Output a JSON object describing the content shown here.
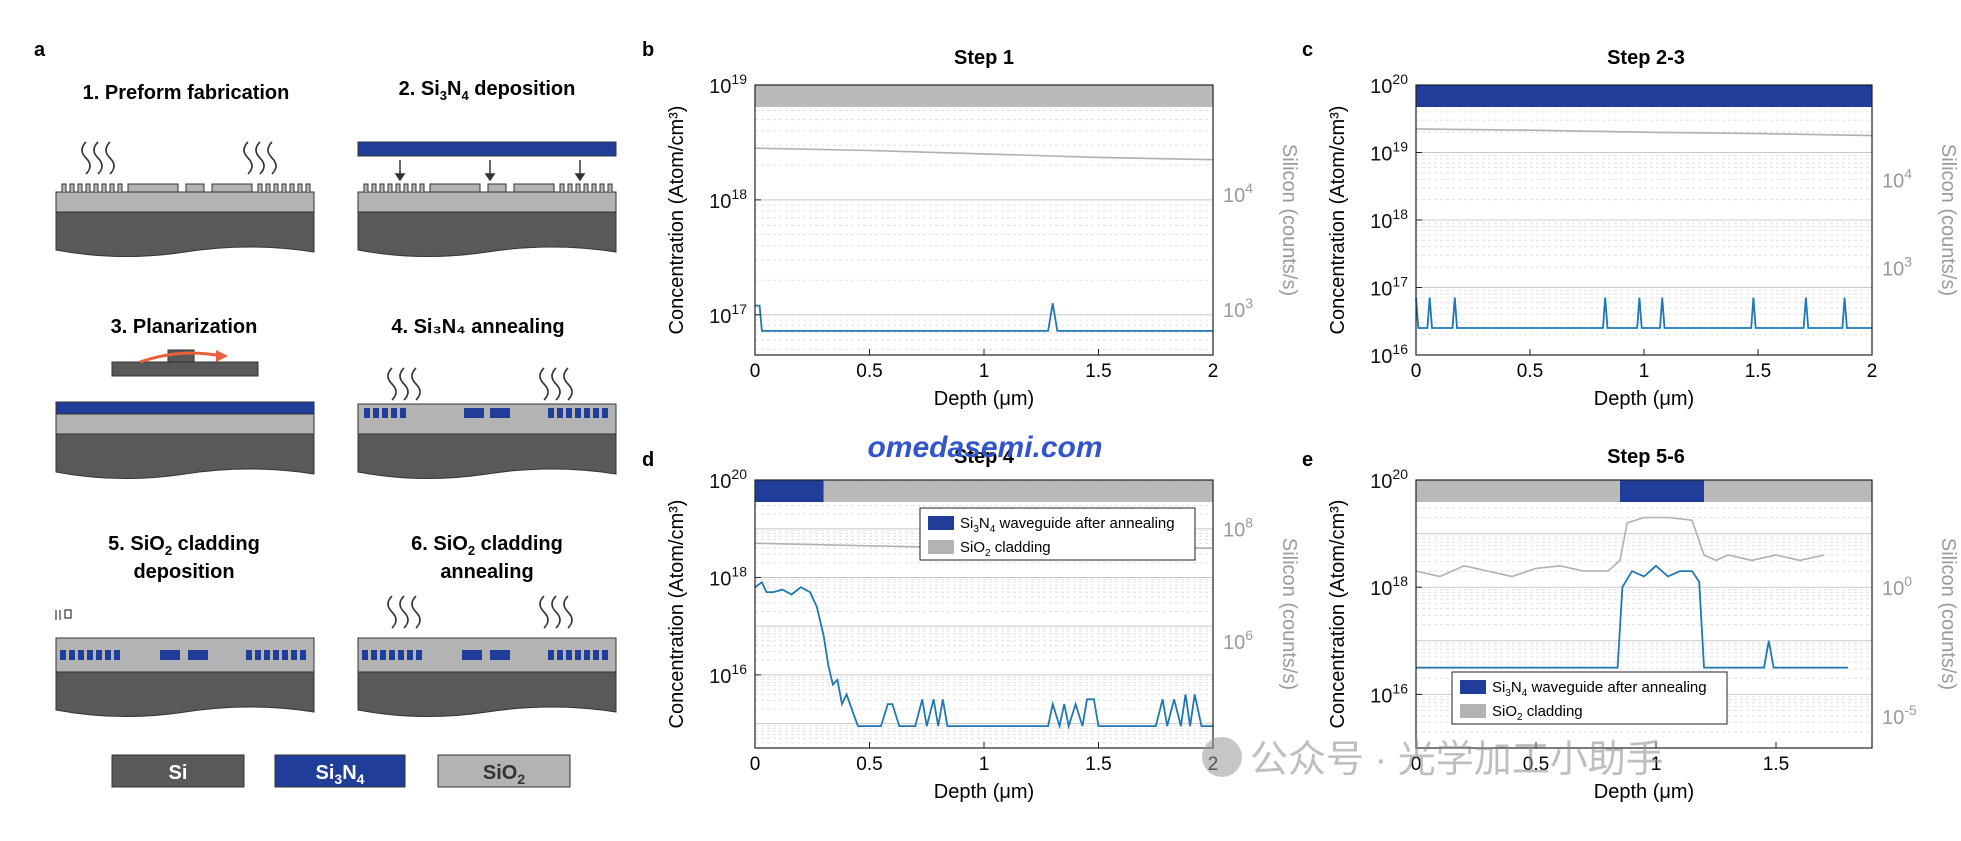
{
  "panel_letters": [
    "a",
    "b",
    "c",
    "d",
    "e"
  ],
  "process_steps": [
    {
      "label": "1. Preform fabrication"
    },
    {
      "label_pre": "2. Si",
      "label_sub": "3",
      "label_mid": "N",
      "label_sub2": "4",
      "label_post": " deposition"
    },
    {
      "label": "3. Planarization"
    },
    {
      "label": "4. Si₃N₄ annealing"
    },
    {
      "line1_pre": "5. SiO",
      "line1_sub": "2",
      "line1_post": " cladding",
      "line2": "deposition"
    },
    {
      "line1_pre": "6. SiO",
      "line1_sub": "2",
      "line1_post": " cladding",
      "line2": "annealing"
    }
  ],
  "materials_legend": [
    {
      "name": "Si",
      "color": "#595959"
    },
    {
      "name_pre": "Si",
      "sub1": "3",
      "name_mid": "N",
      "sub2": "4",
      "color": "#1f3d99"
    },
    {
      "name_pre": "SiO",
      "sub1": "2",
      "color": "#b3b3b3"
    }
  ],
  "colors": {
    "si": "#595959",
    "sin": "#1f3d99",
    "sio2": "#b3b3b3",
    "trace": "#1f77b4",
    "silicon_trace": "#b0b0b0",
    "arrow": "#e8603c",
    "watermark": "#3355cc"
  },
  "watermark": "omedasemi.com",
  "wechat_watermark": "公众号 · 光学加工小助手",
  "chart_data": [
    {
      "panel": "b",
      "title": "Step 1",
      "type": "line",
      "xlabel": "Depth (μm)",
      "ylabel": "Concentration (Atom/cm³)",
      "y2label": "Silicon (counts/s)",
      "xlim": [
        0,
        2
      ],
      "ylim_log10": [
        16.65,
        19
      ],
      "x_ticks": [
        "0",
        "0.5",
        "1",
        "1.5",
        "2"
      ],
      "y_ticks": [
        {
          "exp": "17",
          "v": 17
        },
        {
          "exp": "18",
          "v": 18
        },
        {
          "exp": "19",
          "v": 19
        }
      ],
      "y2_ticks": [
        {
          "exp": "3",
          "pos": 17.05
        },
        {
          "exp": "4",
          "pos": 18.05
        }
      ],
      "bands": [
        {
          "x0": 0,
          "x1": 2,
          "material": "sio2"
        }
      ],
      "series": [
        {
          "x": [
            0,
            0.02,
            0.03,
            1.28,
            1.3,
            1.32,
            2
          ],
          "y": [
            17.08,
            17.08,
            16.86,
            16.86,
            17.1,
            16.86,
            16.86
          ]
        },
        {
          "axis": "right",
          "x": [
            0,
            0.5,
            1.0,
            1.5,
            2.0
          ],
          "y": [
            18.45,
            18.43,
            18.4,
            18.37,
            18.35
          ]
        }
      ]
    },
    {
      "panel": "c",
      "title": "Step 2-3",
      "type": "line",
      "xlabel": "Depth (μm)",
      "ylabel": "Concentration (Atom/cm³)",
      "y2label": "Silicon (counts/s)",
      "xlim": [
        0,
        2
      ],
      "ylim_log10": [
        16,
        20
      ],
      "x_ticks": [
        "0",
        "0.5",
        "1",
        "1.5",
        "2"
      ],
      "y_ticks": [
        {
          "exp": "16",
          "v": 16
        },
        {
          "exp": "17",
          "v": 17
        },
        {
          "exp": "18",
          "v": 18
        },
        {
          "exp": "19",
          "v": 19
        },
        {
          "exp": "20",
          "v": 20
        }
      ],
      "y2_ticks": [
        {
          "exp": "3",
          "pos": 17.3
        },
        {
          "exp": "4",
          "pos": 18.6
        }
      ],
      "bands": [
        {
          "x0": 0,
          "x1": 2,
          "material": "sin"
        }
      ],
      "series": [
        {
          "x": [
            0,
            0.01,
            0.02,
            0.05,
            0.06,
            0.07,
            0.16,
            0.17,
            0.18,
            0.82,
            0.83,
            0.84,
            0.97,
            0.98,
            0.99,
            1.07,
            1.08,
            1.09,
            1.47,
            1.48,
            1.49,
            1.7,
            1.71,
            1.72,
            1.87,
            1.88,
            1.89,
            2
          ],
          "y": [
            16.85,
            16.4,
            16.4,
            16.4,
            16.85,
            16.4,
            16.4,
            16.85,
            16.4,
            16.4,
            16.85,
            16.4,
            16.4,
            16.85,
            16.4,
            16.4,
            16.85,
            16.4,
            16.4,
            16.85,
            16.4,
            16.4,
            16.85,
            16.4,
            16.4,
            16.85,
            16.4,
            16.4
          ]
        },
        {
          "axis": "right",
          "x": [
            0,
            0.5,
            1.0,
            1.5,
            2.0
          ],
          "y": [
            19.35,
            19.33,
            19.3,
            19.28,
            19.25
          ]
        }
      ]
    },
    {
      "panel": "d",
      "title": "Step 4",
      "type": "line",
      "xlabel": "Depth (μm)",
      "ylabel": "Concentration (Atom/cm³)",
      "y2label": "Silicon (counts/s)",
      "xlim": [
        0,
        2
      ],
      "ylim_log10": [
        14.5,
        20
      ],
      "x_ticks": [
        "0",
        "0.5",
        "1",
        "1.5",
        "2"
      ],
      "y_ticks": [
        {
          "exp": "16",
          "v": 16
        },
        {
          "exp": "18",
          "v": 18
        },
        {
          "exp": "20",
          "v": 20
        }
      ],
      "y2_ticks": [
        {
          "exp": "6",
          "pos": 16.7
        },
        {
          "exp": "8",
          "pos": 19.0
        }
      ],
      "bands": [
        {
          "x0": 0,
          "x1": 0.3,
          "material": "sin"
        },
        {
          "x0": 0.3,
          "x1": 2,
          "material": "sio2"
        }
      ],
      "legend": [
        {
          "pre": "Si",
          "sub1": "3",
          "mid": "N",
          "sub2": "4",
          "post": " waveguide after annealing",
          "material": "sin"
        },
        {
          "pre": "SiO",
          "sub1": "2",
          "mid": "",
          "sub2": "",
          "post": " cladding",
          "material": "sio2"
        }
      ],
      "series": [
        {
          "x": [
            0,
            0.03,
            0.05,
            0.08,
            0.12,
            0.16,
            0.2,
            0.24,
            0.27,
            0.3,
            0.32,
            0.34,
            0.36,
            0.38,
            0.4,
            0.43,
            0.45,
            0.5,
            0.55,
            0.58,
            0.6,
            0.63,
            0.7,
            0.73,
            0.75,
            0.78,
            0.8,
            0.82,
            0.84,
            0.86,
            0.9,
            1.0,
            1.2,
            1.28,
            1.3,
            1.33,
            1.35,
            1.37,
            1.4,
            1.43,
            1.45,
            1.48,
            1.5,
            1.55,
            1.7,
            1.75,
            1.78,
            1.8,
            1.83,
            1.86,
            1.88,
            1.9,
            1.92,
            1.95,
            2
          ],
          "y": [
            17.8,
            17.9,
            17.7,
            17.7,
            17.75,
            17.65,
            17.8,
            17.7,
            17.4,
            16.8,
            16.2,
            15.8,
            15.9,
            15.4,
            15.6,
            15.2,
            14.95,
            14.95,
            14.95,
            15.4,
            15.4,
            14.95,
            14.95,
            15.5,
            14.95,
            15.5,
            14.95,
            15.5,
            14.95,
            14.95,
            14.95,
            14.95,
            14.95,
            14.95,
            15.4,
            14.95,
            15.4,
            14.95,
            15.4,
            14.95,
            15.5,
            15.5,
            14.95,
            14.95,
            14.95,
            14.95,
            15.5,
            14.95,
            15.5,
            14.95,
            15.6,
            14.95,
            15.6,
            14.95,
            14.95
          ]
        },
        {
          "axis": "right",
          "x": [
            0,
            0.5,
            1.0,
            1.5,
            2.0
          ],
          "y": [
            18.7,
            18.65,
            18.6,
            18.62,
            18.6
          ]
        }
      ]
    },
    {
      "panel": "e",
      "title": "Step 5-6",
      "type": "line",
      "xlabel": "Depth (μm)",
      "ylabel": "Concentration (Atom/cm³)",
      "y2label": "Silicon (counts/s)",
      "xlim": [
        0,
        1.9
      ],
      "ylim_log10": [
        15,
        20
      ],
      "x_ticks": [
        "0",
        "0.5",
        "1",
        "1.5"
      ],
      "y_ticks": [
        {
          "exp": "16",
          "v": 16
        },
        {
          "exp": "18",
          "v": 18
        },
        {
          "exp": "20",
          "v": 20
        }
      ],
      "y2_ticks": [
        {
          "exp": "-5",
          "pos": 15.6
        },
        {
          "exp": "0",
          "pos": 18.0
        }
      ],
      "bands": [
        {
          "x0": 0,
          "x1": 0.85,
          "material": "sio2"
        },
        {
          "x0": 0.85,
          "x1": 1.2,
          "material": "sin"
        },
        {
          "x0": 1.2,
          "x1": 1.9,
          "material": "sio2"
        }
      ],
      "legend": [
        {
          "pre": "Si",
          "sub1": "3",
          "mid": "N",
          "sub2": "4",
          "post": " waveguide after annealing",
          "material": "sin"
        },
        {
          "pre": "SiO",
          "sub1": "2",
          "mid": "",
          "sub2": "",
          "post": " cladding",
          "material": "sio2"
        }
      ],
      "series": [
        {
          "x": [
            0,
            0.5,
            0.8,
            0.84,
            0.86,
            0.9,
            0.95,
            1.0,
            1.05,
            1.1,
            1.15,
            1.18,
            1.2,
            1.22,
            1.45,
            1.47,
            1.49,
            1.8
          ],
          "y": [
            16.5,
            16.5,
            16.5,
            16.5,
            18.0,
            18.3,
            18.2,
            18.4,
            18.2,
            18.3,
            18.3,
            18.1,
            16.5,
            16.5,
            16.5,
            17.0,
            16.5,
            16.5
          ]
        },
        {
          "axis": "right",
          "x": [
            0,
            0.1,
            0.2,
            0.3,
            0.4,
            0.5,
            0.6,
            0.7,
            0.8,
            0.85,
            0.88,
            0.95,
            1.05,
            1.15,
            1.2,
            1.25,
            1.3,
            1.4,
            1.5,
            1.6,
            1.7
          ],
          "y": [
            18.3,
            18.2,
            18.4,
            18.3,
            18.2,
            18.35,
            18.4,
            18.3,
            18.3,
            18.5,
            19.2,
            19.3,
            19.3,
            19.25,
            18.6,
            18.5,
            18.6,
            18.5,
            18.6,
            18.5,
            18.6
          ]
        }
      ]
    }
  ]
}
